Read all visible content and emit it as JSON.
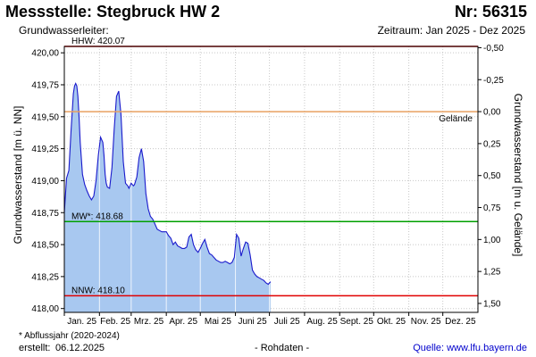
{
  "header": {
    "title": "Messstelle: Stegbruck HW 2",
    "number": "Nr: 56315",
    "subtitle": "Grundwasserleiter:",
    "period": "Zeitraum: Jan 2025 - Dez 2025"
  },
  "footer": {
    "footnote": "* Abflussjahr (2020-2024)",
    "created_label": "erstellt:",
    "created_value": "06.12.2025",
    "raw": "- Rohdaten -",
    "source": "Quelle: www.lfu.bayern.de"
  },
  "chart_data": {
    "type": "area",
    "ylabel": "Grundwasserstand [m ü. NN]",
    "y2label": "Grundwasserstand [m u. Gelände]",
    "ylim": [
      417.97,
      420.05
    ],
    "yticks": [
      "418,00",
      "418,25",
      "418,50",
      "418,75",
      "419,00",
      "419,25",
      "419,50",
      "419,75",
      "420,00"
    ],
    "yticks_values": [
      418.0,
      418.25,
      418.5,
      418.75,
      419.0,
      419.25,
      419.5,
      419.75,
      420.0
    ],
    "y2ticks": [
      "-0,50",
      "-0,25",
      "0,00",
      "0,25",
      "0,50",
      "0,75",
      "1,00",
      "1,25",
      "1,50"
    ],
    "y2ticks_values": [
      -0.5,
      -0.25,
      0.0,
      0.25,
      0.5,
      0.75,
      1.0,
      1.25,
      1.5
    ],
    "ground_level": 419.54,
    "xlabels": [
      "Jan. 25",
      "Feb. 25",
      "Mrz. 25",
      "Apr. 25",
      "Mai 25",
      "Juni 25",
      "Juli 25",
      "Aug. 25",
      "Sept. 25",
      "Okt. 25",
      "Nov. 25",
      "Dez. 25"
    ],
    "xlim": [
      0,
      365
    ],
    "reference_lines": [
      {
        "label": "HHW: 420.07",
        "value": 420.07,
        "color": "#e00000",
        "label_pos": "above-left"
      },
      {
        "label": "Gelände",
        "value": 419.54,
        "color": "#e8a060",
        "label_pos": "below-right"
      },
      {
        "label": "MW*: 418.68",
        "value": 418.68,
        "color": "#00a000",
        "label_pos": "above-left"
      },
      {
        "label": "NNW: 418.10",
        "value": 418.1,
        "color": "#e00000",
        "label_pos": "above-left"
      }
    ],
    "series": [
      {
        "color": "#1a1acc",
        "fill": "#a8c8f0",
        "x": [
          0,
          2,
          4,
          6,
          8,
          9,
          10,
          11,
          12,
          13,
          14,
          16,
          18,
          20,
          22,
          24,
          26,
          28,
          30,
          32,
          34,
          35,
          36,
          37,
          38,
          40,
          42,
          44,
          46,
          48,
          50,
          52,
          54,
          56,
          57,
          58,
          59,
          60,
          61,
          62,
          64,
          66,
          68,
          70,
          72,
          74,
          76,
          78,
          80,
          82,
          84,
          86,
          88,
          90,
          92,
          94,
          96,
          98,
          100,
          102,
          104,
          106,
          108,
          110,
          112,
          114,
          116,
          118,
          120,
          122,
          124,
          126,
          128,
          130,
          132,
          134,
          136,
          138,
          140,
          142,
          144,
          146,
          148,
          150,
          152,
          154,
          156,
          158,
          160,
          162,
          164,
          166,
          168,
          170,
          172,
          174,
          176,
          178,
          180,
          182
        ],
        "y": [
          418.75,
          419.02,
          419.08,
          419.4,
          419.68,
          419.74,
          419.76,
          419.74,
          419.66,
          419.5,
          419.3,
          419.05,
          418.97,
          418.92,
          418.88,
          418.85,
          418.88,
          419.0,
          419.2,
          419.34,
          419.3,
          419.2,
          419.05,
          418.98,
          418.95,
          418.94,
          419.1,
          419.4,
          419.66,
          419.7,
          419.52,
          419.15,
          418.98,
          418.96,
          418.94,
          418.96,
          418.98,
          418.97,
          418.96,
          418.97,
          419.03,
          419.18,
          419.25,
          419.15,
          418.9,
          418.78,
          418.72,
          418.7,
          418.66,
          418.62,
          418.61,
          418.6,
          418.6,
          418.6,
          418.57,
          418.55,
          418.5,
          418.52,
          418.49,
          418.48,
          418.47,
          418.47,
          418.48,
          418.56,
          418.58,
          418.5,
          418.46,
          418.44,
          418.47,
          418.51,
          418.54,
          418.48,
          418.43,
          418.42,
          418.4,
          418.38,
          418.37,
          418.36,
          418.36,
          418.37,
          418.36,
          418.35,
          418.36,
          418.4,
          418.58,
          418.55,
          418.41,
          418.47,
          418.52,
          418.51,
          418.42,
          418.3,
          418.27,
          418.25,
          418.24,
          418.23,
          418.22,
          418.2,
          418.19,
          418.21
        ]
      }
    ]
  }
}
